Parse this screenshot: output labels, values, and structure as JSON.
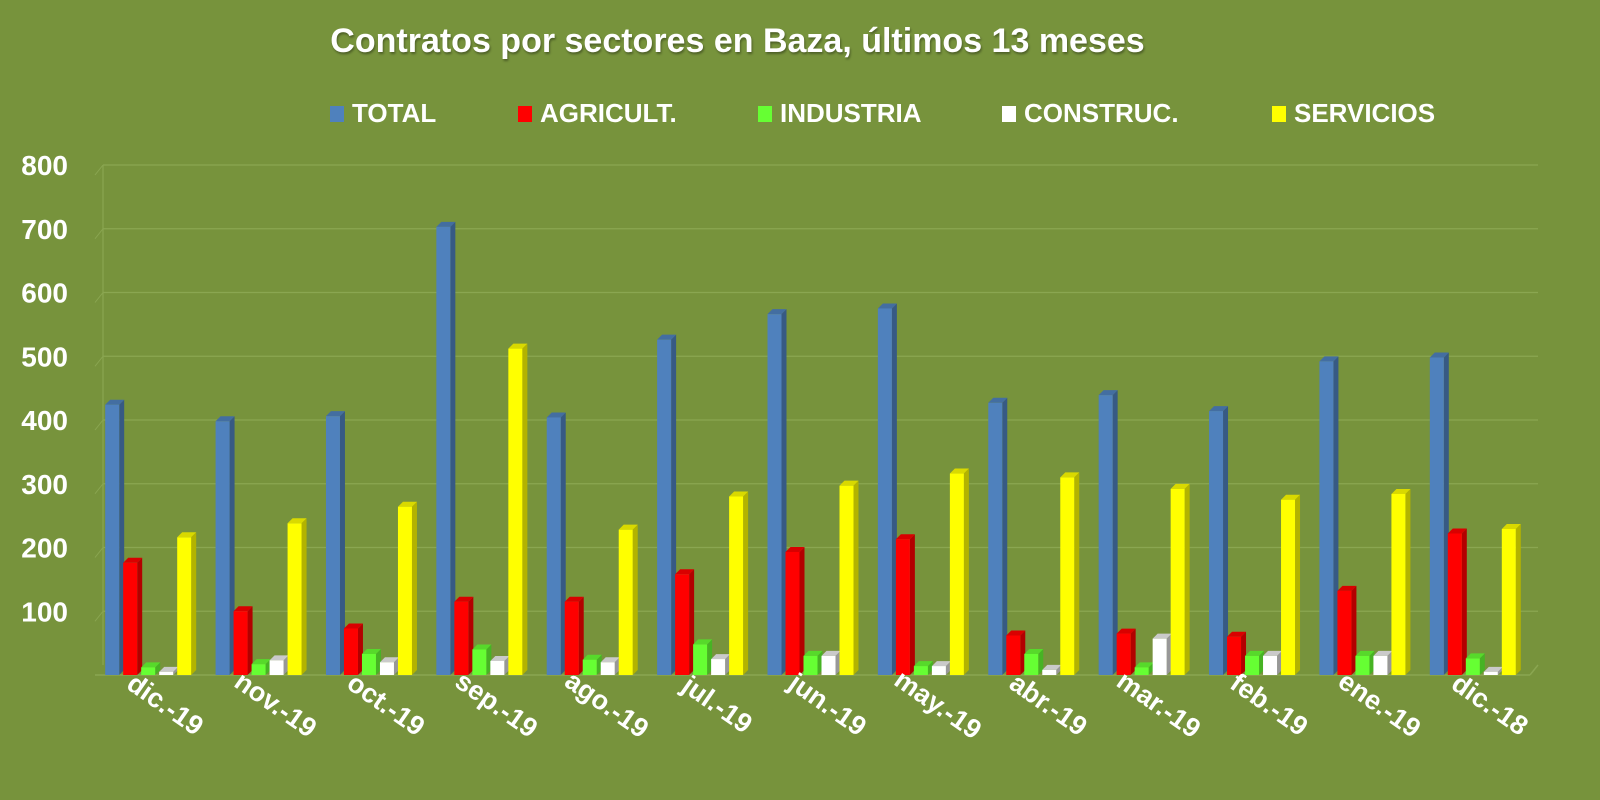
{
  "chart_data": {
    "type": "bar",
    "title": "Contratos por sectores en Baza, últimos 13 meses",
    "categories": [
      "dic.-19",
      "nov.-19",
      "oct.-19",
      "sep.-19",
      "ago.-19",
      "jul.-19",
      "jun.-19",
      "may.-19",
      "abr.-19",
      "mar.-19",
      "feb.-19",
      "ene.-19",
      "dic.-18"
    ],
    "series": [
      {
        "name": "TOTAL",
        "color": "#4f81bd",
        "values": [
          424,
          398,
          406,
          703,
          404,
          526,
          566,
          575,
          427,
          439,
          414,
          492,
          498
        ]
      },
      {
        "name": "AGRICULT.",
        "color": "#ff0000",
        "values": [
          176,
          100,
          73,
          115,
          115,
          158,
          193,
          213,
          62,
          65,
          60,
          132,
          222
        ]
      },
      {
        "name": "INDUSTRIA",
        "color": "#66ff33",
        "values": [
          12,
          17,
          33,
          40,
          24,
          48,
          30,
          14,
          33,
          12,
          30,
          30,
          26
        ]
      },
      {
        "name": "CONSTRUC.",
        "color": "#ffffff",
        "values": [
          5,
          23,
          20,
          22,
          20,
          25,
          30,
          14,
          8,
          57,
          30,
          30,
          5
        ]
      },
      {
        "name": "SERVICIOS",
        "color": "#ffff00",
        "values": [
          216,
          238,
          264,
          512,
          228,
          280,
          297,
          316,
          310,
          292,
          275,
          284,
          229
        ]
      }
    ],
    "ylim": [
      0,
      800
    ],
    "yticks": [
      100,
      200,
      300,
      400,
      500,
      600,
      700,
      800
    ],
    "grid": true,
    "legend_position": "top"
  }
}
